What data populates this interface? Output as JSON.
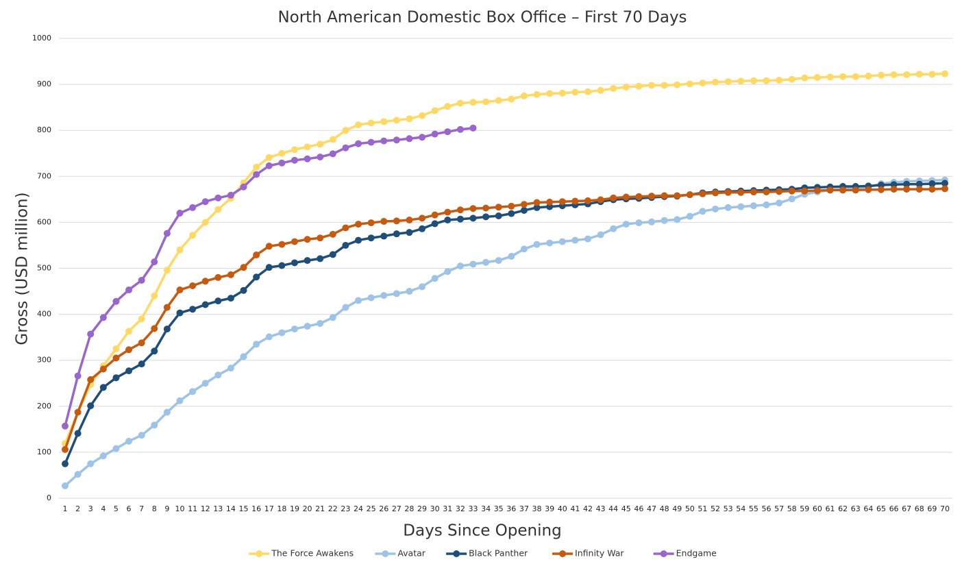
{
  "chart_data": {
    "type": "line",
    "title": "North American Domestic Box Office – First 70 Days",
    "x_label": "Days Since Opening",
    "y_label": "Gross (USD million)",
    "categories": [
      1,
      2,
      3,
      4,
      5,
      6,
      7,
      8,
      9,
      10,
      11,
      12,
      13,
      14,
      15,
      16,
      17,
      18,
      19,
      20,
      21,
      22,
      23,
      24,
      25,
      26,
      27,
      28,
      29,
      30,
      31,
      32,
      33,
      34,
      35,
      36,
      37,
      38,
      39,
      40,
      41,
      42,
      43,
      44,
      45,
      46,
      47,
      48,
      49,
      50,
      51,
      52,
      53,
      54,
      55,
      56,
      57,
      58,
      59,
      60,
      61,
      62,
      63,
      64,
      65,
      66,
      67,
      68,
      69,
      70
    ],
    "ylim": [
      0,
      1000
    ],
    "yticks": [
      0,
      100,
      200,
      300,
      400,
      500,
      600,
      700,
      800,
      900,
      1000
    ],
    "grid": true,
    "legend": "bottom",
    "series": [
      {
        "name": "The Force Awakens",
        "color": "#ffd966",
        "values": [
          119,
          187,
          247,
          288,
          325,
          363,
          390,
          440,
          496,
          540,
          572,
          600,
          628,
          652,
          686,
          720,
          741,
          750,
          758,
          764,
          770,
          780,
          800,
          812,
          816,
          819,
          822,
          825,
          832,
          843,
          852,
          859,
          861,
          862,
          865,
          868,
          875,
          878,
          880,
          881,
          883,
          884,
          887,
          891,
          894,
          896,
          898,
          898,
          899,
          901,
          903,
          905,
          906,
          907,
          908,
          908,
          909,
          911,
          914,
          915,
          916,
          917,
          917,
          918,
          920,
          921,
          921,
          922,
          922,
          923
        ]
      },
      {
        "name": "Avatar",
        "color": "#9dc3e6",
        "values": [
          27,
          52,
          75,
          92,
          108,
          124,
          137,
          159,
          187,
          212,
          232,
          250,
          268,
          283,
          308,
          335,
          351,
          360,
          368,
          374,
          380,
          393,
          415,
          430,
          436,
          441,
          445,
          450,
          460,
          478,
          493,
          505,
          509,
          513,
          517,
          526,
          542,
          552,
          555,
          558,
          561,
          564,
          573,
          586,
          596,
          599,
          601,
          604,
          606,
          613,
          624,
          629,
          632,
          634,
          636,
          638,
          642,
          651,
          661,
          666,
          670,
          673,
          675,
          677,
          684,
          687,
          689,
          690,
          691,
          692
        ]
      },
      {
        "name": "Black Panther",
        "color": "#1f4e79",
        "values": [
          75,
          141,
          201,
          241,
          262,
          277,
          292,
          320,
          368,
          403,
          411,
          421,
          429,
          435,
          452,
          481,
          502,
          506,
          512,
          517,
          521,
          530,
          550,
          561,
          566,
          570,
          575,
          578,
          586,
          597,
          605,
          607,
          609,
          612,
          614,
          619,
          626,
          632,
          634,
          636,
          638,
          640,
          645,
          649,
          651,
          652,
          654,
          656,
          657,
          660,
          664,
          666,
          667,
          668,
          669,
          670,
          671,
          672,
          675,
          676,
          677,
          678,
          678,
          679,
          681,
          682,
          683,
          683,
          684,
          685
        ]
      },
      {
        "name": "Infinity War",
        "color": "#c55a11",
        "values": [
          106,
          187,
          258,
          281,
          305,
          323,
          338,
          369,
          415,
          453,
          462,
          472,
          480,
          486,
          502,
          529,
          548,
          552,
          558,
          563,
          566,
          574,
          588,
          596,
          599,
          602,
          603,
          605,
          609,
          616,
          622,
          627,
          630,
          631,
          633,
          635,
          639,
          643,
          644,
          645,
          646,
          647,
          649,
          653,
          655,
          656,
          657,
          658,
          658,
          660,
          662,
          664,
          665,
          665,
          666,
          666,
          667,
          668,
          668,
          669,
          670,
          670,
          670,
          671,
          671,
          672,
          672,
          672,
          672,
          673
        ]
      },
      {
        "name": "Endgame",
        "color": "#9966cc",
        "values": [
          157,
          266,
          357,
          393,
          428,
          453,
          474,
          514,
          576,
          620,
          632,
          645,
          653,
          659,
          677,
          704,
          723,
          729,
          735,
          738,
          742,
          749,
          762,
          771,
          774,
          777,
          779,
          782,
          785,
          792,
          797,
          802,
          805,
          null,
          null,
          null,
          null,
          null,
          null,
          null,
          null,
          null,
          null,
          null,
          null,
          null,
          null,
          null,
          null,
          null,
          null,
          null,
          null,
          null,
          null,
          null,
          null,
          null,
          null,
          null,
          null,
          null,
          null,
          null,
          null,
          null,
          null,
          null,
          null,
          null
        ]
      }
    ]
  }
}
